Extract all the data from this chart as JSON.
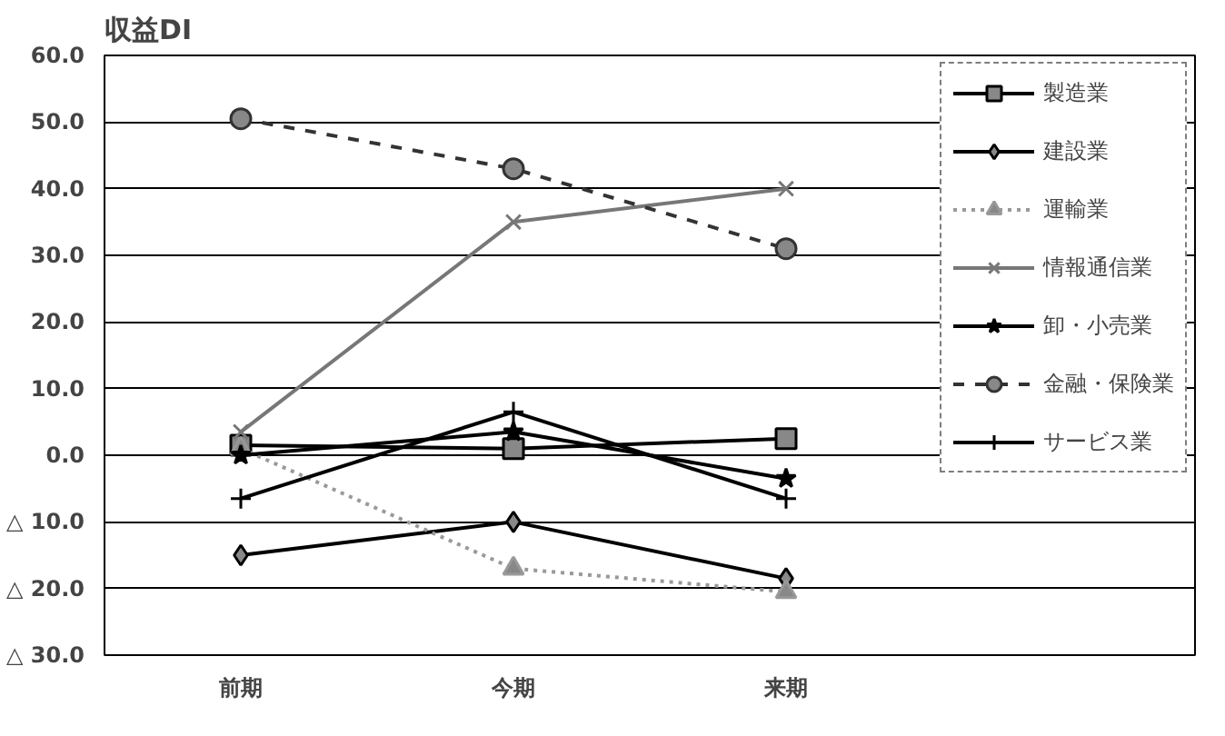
{
  "chart_data": {
    "type": "line",
    "title": "収益DI",
    "categories": [
      "前期",
      "今期",
      "来期"
    ],
    "series": [
      {
        "name": "製造業",
        "color": "#000000",
        "marker": "square",
        "line_style": "solid",
        "values": [
          1.5,
          1.0,
          2.5
        ]
      },
      {
        "name": "建設業",
        "color": "#000000",
        "marker": "diamond",
        "line_style": "solid",
        "values": [
          -15.0,
          -10.0,
          -18.5
        ]
      },
      {
        "name": "運輸業",
        "color": "#999999",
        "marker": "triangle",
        "line_style": "dotted",
        "values": [
          1.0,
          -17.0,
          -20.5
        ]
      },
      {
        "name": "情報通信業",
        "color": "#777777",
        "marker": "x",
        "line_style": "solid",
        "values": [
          3.5,
          35.0,
          40.0
        ]
      },
      {
        "name": "卸・小売業",
        "color": "#000000",
        "marker": "star",
        "line_style": "solid",
        "values": [
          0.0,
          3.5,
          -3.5
        ]
      },
      {
        "name": "金融・保険業",
        "color": "#333333",
        "marker": "circle",
        "line_style": "dashed",
        "values": [
          50.5,
          43.0,
          31.0
        ]
      },
      {
        "name": "サービス業",
        "color": "#000000",
        "marker": "cross",
        "line_style": "solid",
        "values": [
          -6.5,
          6.5,
          -6.5
        ]
      }
    ],
    "ylim": [
      -30,
      60
    ],
    "yticks": [
      {
        "value": 60,
        "label": "60.0"
      },
      {
        "value": 50,
        "label": "50.0"
      },
      {
        "value": 40,
        "label": "40.0"
      },
      {
        "value": 30,
        "label": "30.0"
      },
      {
        "value": 20,
        "label": "20.0"
      },
      {
        "value": 10,
        "label": "10.0"
      },
      {
        "value": 0,
        "label": "0.0"
      },
      {
        "value": -10,
        "label": "△ 10.0"
      },
      {
        "value": -20,
        "label": "△ 20.0"
      },
      {
        "value": -30,
        "label": "△ 30.0"
      }
    ],
    "grid": "y",
    "legend": "right"
  }
}
